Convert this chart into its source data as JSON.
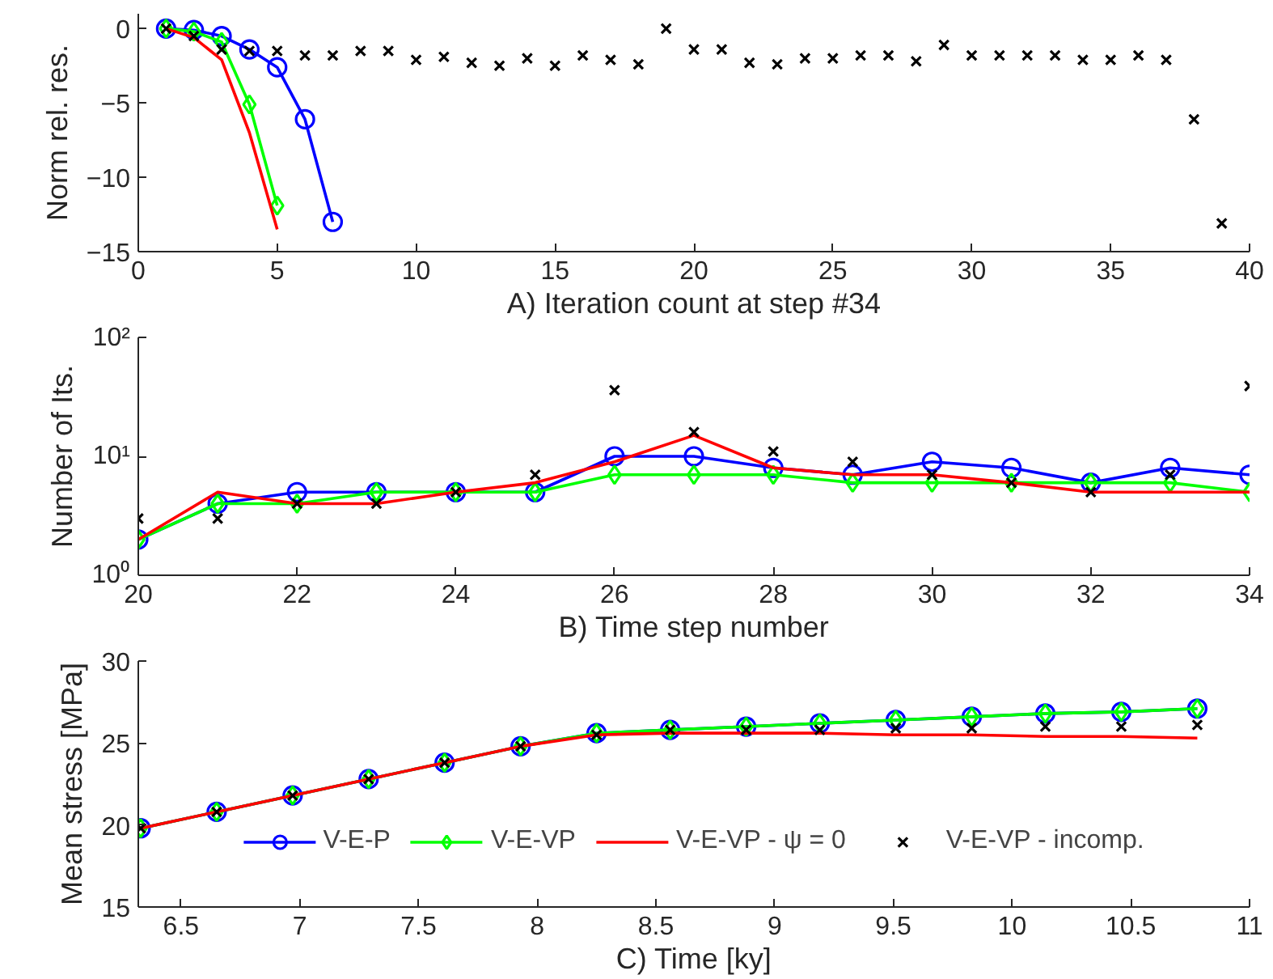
{
  "chart_data": [
    {
      "type": "line",
      "xlabel": "A) Iteration count at step #34",
      "ylabel": "Norm rel. res.",
      "xlim": [
        0,
        40
      ],
      "ylim": [
        -15,
        1
      ],
      "xticks": [
        0,
        5,
        10,
        15,
        20,
        25,
        30,
        35,
        40
      ],
      "yticks": [
        -15,
        -10,
        -5,
        0
      ],
      "grid": false,
      "legend": false,
      "series": [
        {
          "color": "#0000ff",
          "marker": "circle",
          "x": [
            1,
            2,
            3,
            4,
            5,
            6,
            7
          ],
          "values": [
            0,
            -0.1,
            -0.5,
            -1.4,
            -2.6,
            -6.1,
            -13.0
          ]
        },
        {
          "color": "#00ff00",
          "marker": "diamond",
          "x": [
            1,
            2,
            3,
            4,
            5
          ],
          "values": [
            0,
            -0.2,
            -0.9,
            -5.1,
            -11.9
          ]
        },
        {
          "color": "#ff0000",
          "marker": "none",
          "x": [
            1,
            2,
            3,
            4,
            5
          ],
          "values": [
            0,
            -0.6,
            -2.1,
            -7.0,
            -13.5
          ]
        },
        {
          "type": "scatter",
          "color": "#000000",
          "marker": "cross",
          "x": [
            1,
            2,
            3,
            4,
            5,
            6,
            7,
            8,
            9,
            10,
            11,
            12,
            13,
            14,
            15,
            16,
            17,
            18,
            19,
            20,
            21,
            22,
            23,
            24,
            25,
            26,
            27,
            28,
            29,
            30,
            31,
            32,
            33,
            34,
            35,
            36,
            37,
            38,
            39
          ],
          "values": [
            0,
            -0.5,
            -1.4,
            -1.5,
            -1.5,
            -1.8,
            -1.8,
            -1.5,
            -1.5,
            -2.1,
            -1.9,
            -2.3,
            -2.5,
            -2.0,
            -2.5,
            -1.8,
            -2.1,
            -2.4,
            0,
            -1.4,
            -1.4,
            -2.3,
            -2.4,
            -2.0,
            -2.0,
            -1.8,
            -1.8,
            -2.2,
            -1.1,
            -1.8,
            -1.8,
            -1.8,
            -1.8,
            -2.1,
            -2.1,
            -1.8,
            -2.1,
            -6.1,
            -13.1
          ]
        }
      ]
    },
    {
      "type": "line",
      "xlabel": "B) Time step number",
      "ylabel": "Number of Its.",
      "log": "y",
      "xlim": [
        20,
        34
      ],
      "ylim": [
        1,
        100
      ],
      "xticks": [
        20,
        22,
        24,
        26,
        28,
        30,
        32,
        34
      ],
      "yticks": [
        {
          "value": 1,
          "label": "10⁰"
        },
        {
          "value": 10,
          "label": "10¹"
        },
        {
          "value": 100,
          "label": "10²"
        }
      ],
      "grid": false,
      "legend": false,
      "x": [
        20,
        21,
        22,
        23,
        24,
        25,
        26,
        27,
        28,
        29,
        30,
        31,
        32,
        33,
        34
      ],
      "series": [
        {
          "color": "#0000ff",
          "marker": "circle",
          "values": [
            2,
            4,
            5,
            5,
            5,
            5,
            10,
            10,
            8,
            7,
            9,
            8,
            6,
            8,
            7
          ]
        },
        {
          "color": "#00ff00",
          "marker": "diamond",
          "values": [
            2,
            4,
            4,
            5,
            5,
            5,
            7,
            7,
            7,
            6,
            6,
            6,
            6,
            6,
            5
          ]
        },
        {
          "color": "#ff0000",
          "marker": "none",
          "values": [
            2,
            5,
            4,
            4,
            5,
            6,
            9,
            15,
            8,
            7,
            7,
            6,
            5,
            5,
            5
          ]
        },
        {
          "type": "scatter",
          "color": "#000000",
          "marker": "cross",
          "values": [
            3,
            3,
            4,
            4,
            5,
            7,
            36,
            16,
            11,
            9,
            7,
            6,
            5,
            7,
            39
          ]
        }
      ]
    },
    {
      "type": "line",
      "xlabel": "C) Time [ky]",
      "ylabel": "Mean stress [MPa]",
      "xlim": [
        6.32,
        11
      ],
      "ylim": [
        15,
        30
      ],
      "xticks": [
        6.5,
        7,
        7.5,
        8,
        8.5,
        9,
        9.5,
        10,
        10.5,
        11
      ],
      "yticks": [
        15,
        20,
        25,
        30
      ],
      "grid": false,
      "legend": "bottom",
      "x": [
        6.33,
        6.65,
        6.97,
        7.29,
        7.61,
        7.93,
        8.25,
        8.56,
        8.88,
        9.19,
        9.51,
        9.83,
        10.14,
        10.46,
        10.78
      ],
      "series": [
        {
          "name": "V-E-P",
          "color": "#0000ff",
          "marker": "circle",
          "values": [
            19.8,
            20.8,
            21.8,
            22.8,
            23.8,
            24.8,
            25.6,
            25.8,
            26.0,
            26.2,
            26.4,
            26.6,
            26.8,
            26.9,
            27.1
          ]
        },
        {
          "name": "V-E-VP",
          "color": "#00ff00",
          "marker": "diamond",
          "values": [
            19.8,
            20.8,
            21.8,
            22.8,
            23.8,
            24.8,
            25.6,
            25.8,
            26.0,
            26.2,
            26.4,
            26.6,
            26.8,
            26.9,
            27.1
          ]
        },
        {
          "name": "V-E-VP - ψ = 0",
          "color": "#ff0000",
          "marker": "none",
          "values": [
            19.8,
            20.8,
            21.8,
            22.8,
            23.8,
            24.8,
            25.5,
            25.6,
            25.6,
            25.6,
            25.5,
            25.5,
            25.4,
            25.4,
            25.3
          ]
        },
        {
          "type": "scatter",
          "name": "V-E-VP - incomp.",
          "color": "#000000",
          "marker": "cross",
          "values": [
            19.8,
            20.8,
            21.8,
            22.8,
            23.8,
            24.8,
            25.5,
            25.8,
            25.8,
            25.8,
            25.9,
            25.9,
            26.0,
            26.0,
            26.1
          ]
        }
      ]
    }
  ]
}
